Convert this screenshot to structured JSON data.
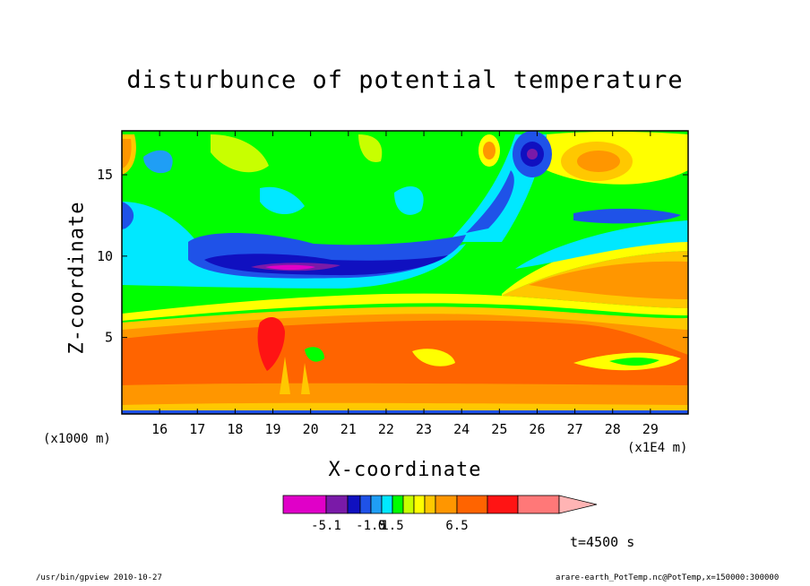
{
  "chart_data": {
    "type": "heatmap",
    "title": "disturbunce of potential temperature",
    "xlabel": "X-coordinate",
    "ylabel": "Z-coordinate",
    "x_unit_left": "(x1000 m)",
    "x_unit_right": "(x1E4 m)",
    "xlim": [
      15,
      30
    ],
    "ylim": [
      0.3,
      17.7
    ],
    "x_ticks": [
      16,
      17,
      18,
      19,
      20,
      21,
      22,
      23,
      24,
      25,
      26,
      27,
      28,
      29
    ],
    "y_ticks": [
      5,
      10,
      15
    ],
    "colorbar": {
      "colors": [
        "#e000c8",
        "#7a1aa8",
        "#1010c0",
        "#1f52e8",
        "#1f9ef5",
        "#00e8ff",
        "#00ff00",
        "#c8ff00",
        "#ffff00",
        "#ffc800",
        "#ff9600",
        "#ff6400",
        "#ff1414",
        "#ff7878",
        "#ffb4b4"
      ],
      "labels": [
        {
          "text": "-5.1",
          "boundary": 1
        },
        {
          "text": "-1.5",
          "boundary": 4
        },
        {
          "text": "0",
          "boundary": 5
        },
        {
          "text": "1.5",
          "boundary": 6
        },
        {
          "text": "6.5",
          "boundary": 11
        }
      ]
    },
    "annotation": "t=4500 s"
  },
  "footer": {
    "left": "/usr/bin/gpview   2010-10-27",
    "right": "arare-earth_PotTemp.nc@PotTemp,x=150000:300000"
  }
}
